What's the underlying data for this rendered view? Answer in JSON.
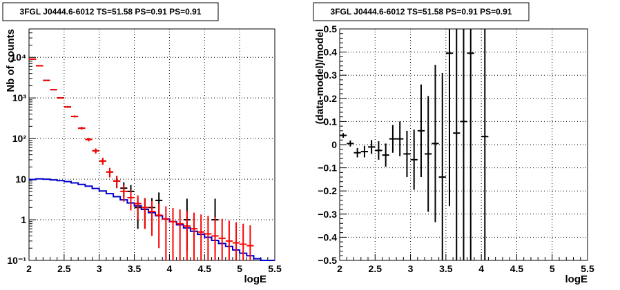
{
  "chart_data": [
    {
      "type": "line",
      "title": "3FGL J0444.6-6012 TS=51.58 PS=0.91 PS=0.91",
      "xlabel": "logE",
      "ylabel": "Nb of counts",
      "xlim": [
        2,
        5.5
      ],
      "ylim": [
        0.1,
        50000
      ],
      "yscale": "log",
      "grid": true,
      "x_ticks": [
        "2",
        "2.5",
        "3",
        "3.5",
        "4",
        "4.5",
        "5",
        "5.5"
      ],
      "y_ticks": [
        "10⁻¹",
        "1",
        "10",
        "10²",
        "10³",
        "10⁴"
      ],
      "series": [
        {
          "color": "#000000",
          "x": [
            2.05,
            2.15,
            2.25,
            2.35,
            2.45,
            2.55,
            2.65,
            2.75,
            2.85,
            2.95,
            3.05,
            3.15,
            3.25,
            3.35,
            3.45,
            3.55,
            3.65,
            3.75,
            3.85,
            4.25,
            4.65
          ],
          "y": [
            9000,
            6200,
            2700,
            1600,
            1000,
            600,
            350,
            180,
            95,
            50,
            28,
            15,
            9,
            6,
            5,
            2,
            2,
            2,
            3,
            1,
            1
          ],
          "yerr_low": [
            90,
            80,
            50,
            40,
            30,
            24,
            19,
            13,
            9.7,
            7,
            5.3,
            3.9,
            3,
            2.4,
            2.2,
            1.4,
            1.4,
            1.4,
            1.7,
            0.83,
            0.83
          ],
          "yerr_high": [
            90,
            80,
            50,
            40,
            30,
            24,
            19,
            13,
            9.7,
            7,
            5.3,
            3.9,
            3,
            2.4,
            2.2,
            1.4,
            1.4,
            1.4,
            1.7,
            2.3,
            2.3
          ]
        },
        {
          "color": "#ff0000",
          "x": [
            2.05,
            2.15,
            2.25,
            2.35,
            2.45,
            2.55,
            2.65,
            2.75,
            2.85,
            2.95,
            3.05,
            3.15,
            3.25,
            3.35,
            3.45,
            3.55,
            3.65,
            3.75,
            3.85,
            3.95,
            4.05,
            4.15,
            4.25,
            4.35,
            4.45,
            4.55,
            4.65,
            4.75,
            4.85,
            4.95,
            5.05,
            5.15
          ],
          "y": [
            9000,
            6200,
            2700,
            1600,
            1000,
            600,
            350,
            180,
            95,
            50,
            28,
            15,
            9,
            5,
            3.5,
            2.5,
            2,
            1.6,
            1.3,
            1.05,
            0.9,
            0.8,
            0.7,
            0.6,
            0.5,
            0.45,
            0.4,
            0.35,
            0.3,
            0.27,
            0.25,
            0.23
          ],
          "yerr_low": [
            90,
            80,
            50,
            40,
            30,
            24,
            19,
            13,
            9.7,
            7,
            5.3,
            3.9,
            3,
            2.2,
            1.8,
            1.5,
            1.4,
            1.2,
            1.1,
            0.95,
            0.85,
            0.76,
            0.67,
            0.58,
            0.49,
            0.44,
            0.39,
            0.345,
            0.295,
            0.265,
            0.245,
            0.225
          ],
          "yerr_high": [
            90,
            80,
            50,
            40,
            30,
            24,
            19,
            13,
            9.7,
            7,
            5.3,
            3.9,
            3,
            2.2,
            1.8,
            1.5,
            1.4,
            1.3,
            1.2,
            1.1,
            1.05,
            1.0,
            0.95,
            0.9,
            0.85,
            0.8,
            0.75,
            0.7,
            0.65,
            0.6,
            0.55,
            0.5
          ]
        },
        {
          "color": "#0000cc",
          "drawstyle": "steps",
          "x": [
            2.0,
            2.1,
            2.2,
            2.3,
            2.4,
            2.5,
            2.6,
            2.7,
            2.8,
            2.9,
            3.0,
            3.1,
            3.2,
            3.3,
            3.4,
            3.5,
            3.6,
            3.7,
            3.8,
            3.9,
            4.0,
            4.1,
            4.2,
            4.3,
            4.4,
            4.5,
            4.6,
            4.7,
            4.8,
            4.9,
            5.0,
            5.1,
            5.2,
            5.3,
            5.4
          ],
          "y": [
            9.8,
            10.2,
            10.0,
            9.6,
            9.2,
            8.7,
            8.1,
            7.4,
            6.7,
            5.9,
            5.1,
            4.4,
            3.7,
            3.1,
            2.6,
            2.2,
            1.8,
            1.5,
            1.25,
            1.05,
            0.9,
            0.75,
            0.63,
            0.52,
            0.44,
            0.37,
            0.31,
            0.26,
            0.22,
            0.18,
            0.15,
            0.13,
            0.11,
            0.1,
            0.1
          ]
        }
      ]
    },
    {
      "type": "scatter",
      "title": "3FGL J0444.6-6012 TS=51.58 PS=0.91 PS=0.91",
      "xlabel": "logE",
      "ylabel": "(data-model)/model",
      "xlim": [
        2,
        5.5
      ],
      "ylim": [
        -0.5,
        0.5
      ],
      "grid": true,
      "x_ticks": [
        "2",
        "2.5",
        "3",
        "3.5",
        "4",
        "4.5",
        "5",
        "5.5"
      ],
      "y_ticks": [
        "−0.5",
        "−0.4",
        "−0.3",
        "−0.2",
        "−0.1",
        "0",
        "0.1",
        "0.2",
        "0.3",
        "0.4",
        "0.5"
      ],
      "series": [
        {
          "color": "#000000",
          "x": [
            2.05,
            2.15,
            2.25,
            2.35,
            2.45,
            2.55,
            2.65,
            2.75,
            2.85,
            2.95,
            3.05,
            3.15,
            3.25,
            3.35,
            3.45,
            3.55,
            3.65,
            3.75,
            3.85,
            4.05
          ],
          "y": [
            0.04,
            0.005,
            -0.035,
            -0.03,
            -0.01,
            -0.025,
            -0.045,
            0.025,
            0.025,
            -0.04,
            -0.065,
            0.06,
            -0.04,
            0.005,
            -0.14,
            0.395,
            0.05,
            0.1,
            0.395,
            0.035
          ],
          "yerr": [
            0.01,
            0.013,
            0.02,
            0.025,
            0.03,
            0.04,
            0.05,
            0.06,
            0.075,
            0.1,
            0.13,
            0.2,
            0.25,
            0.34,
            0.45,
            0.66,
            0.7,
            0.7,
            1.0,
            1.2
          ]
        }
      ]
    }
  ]
}
